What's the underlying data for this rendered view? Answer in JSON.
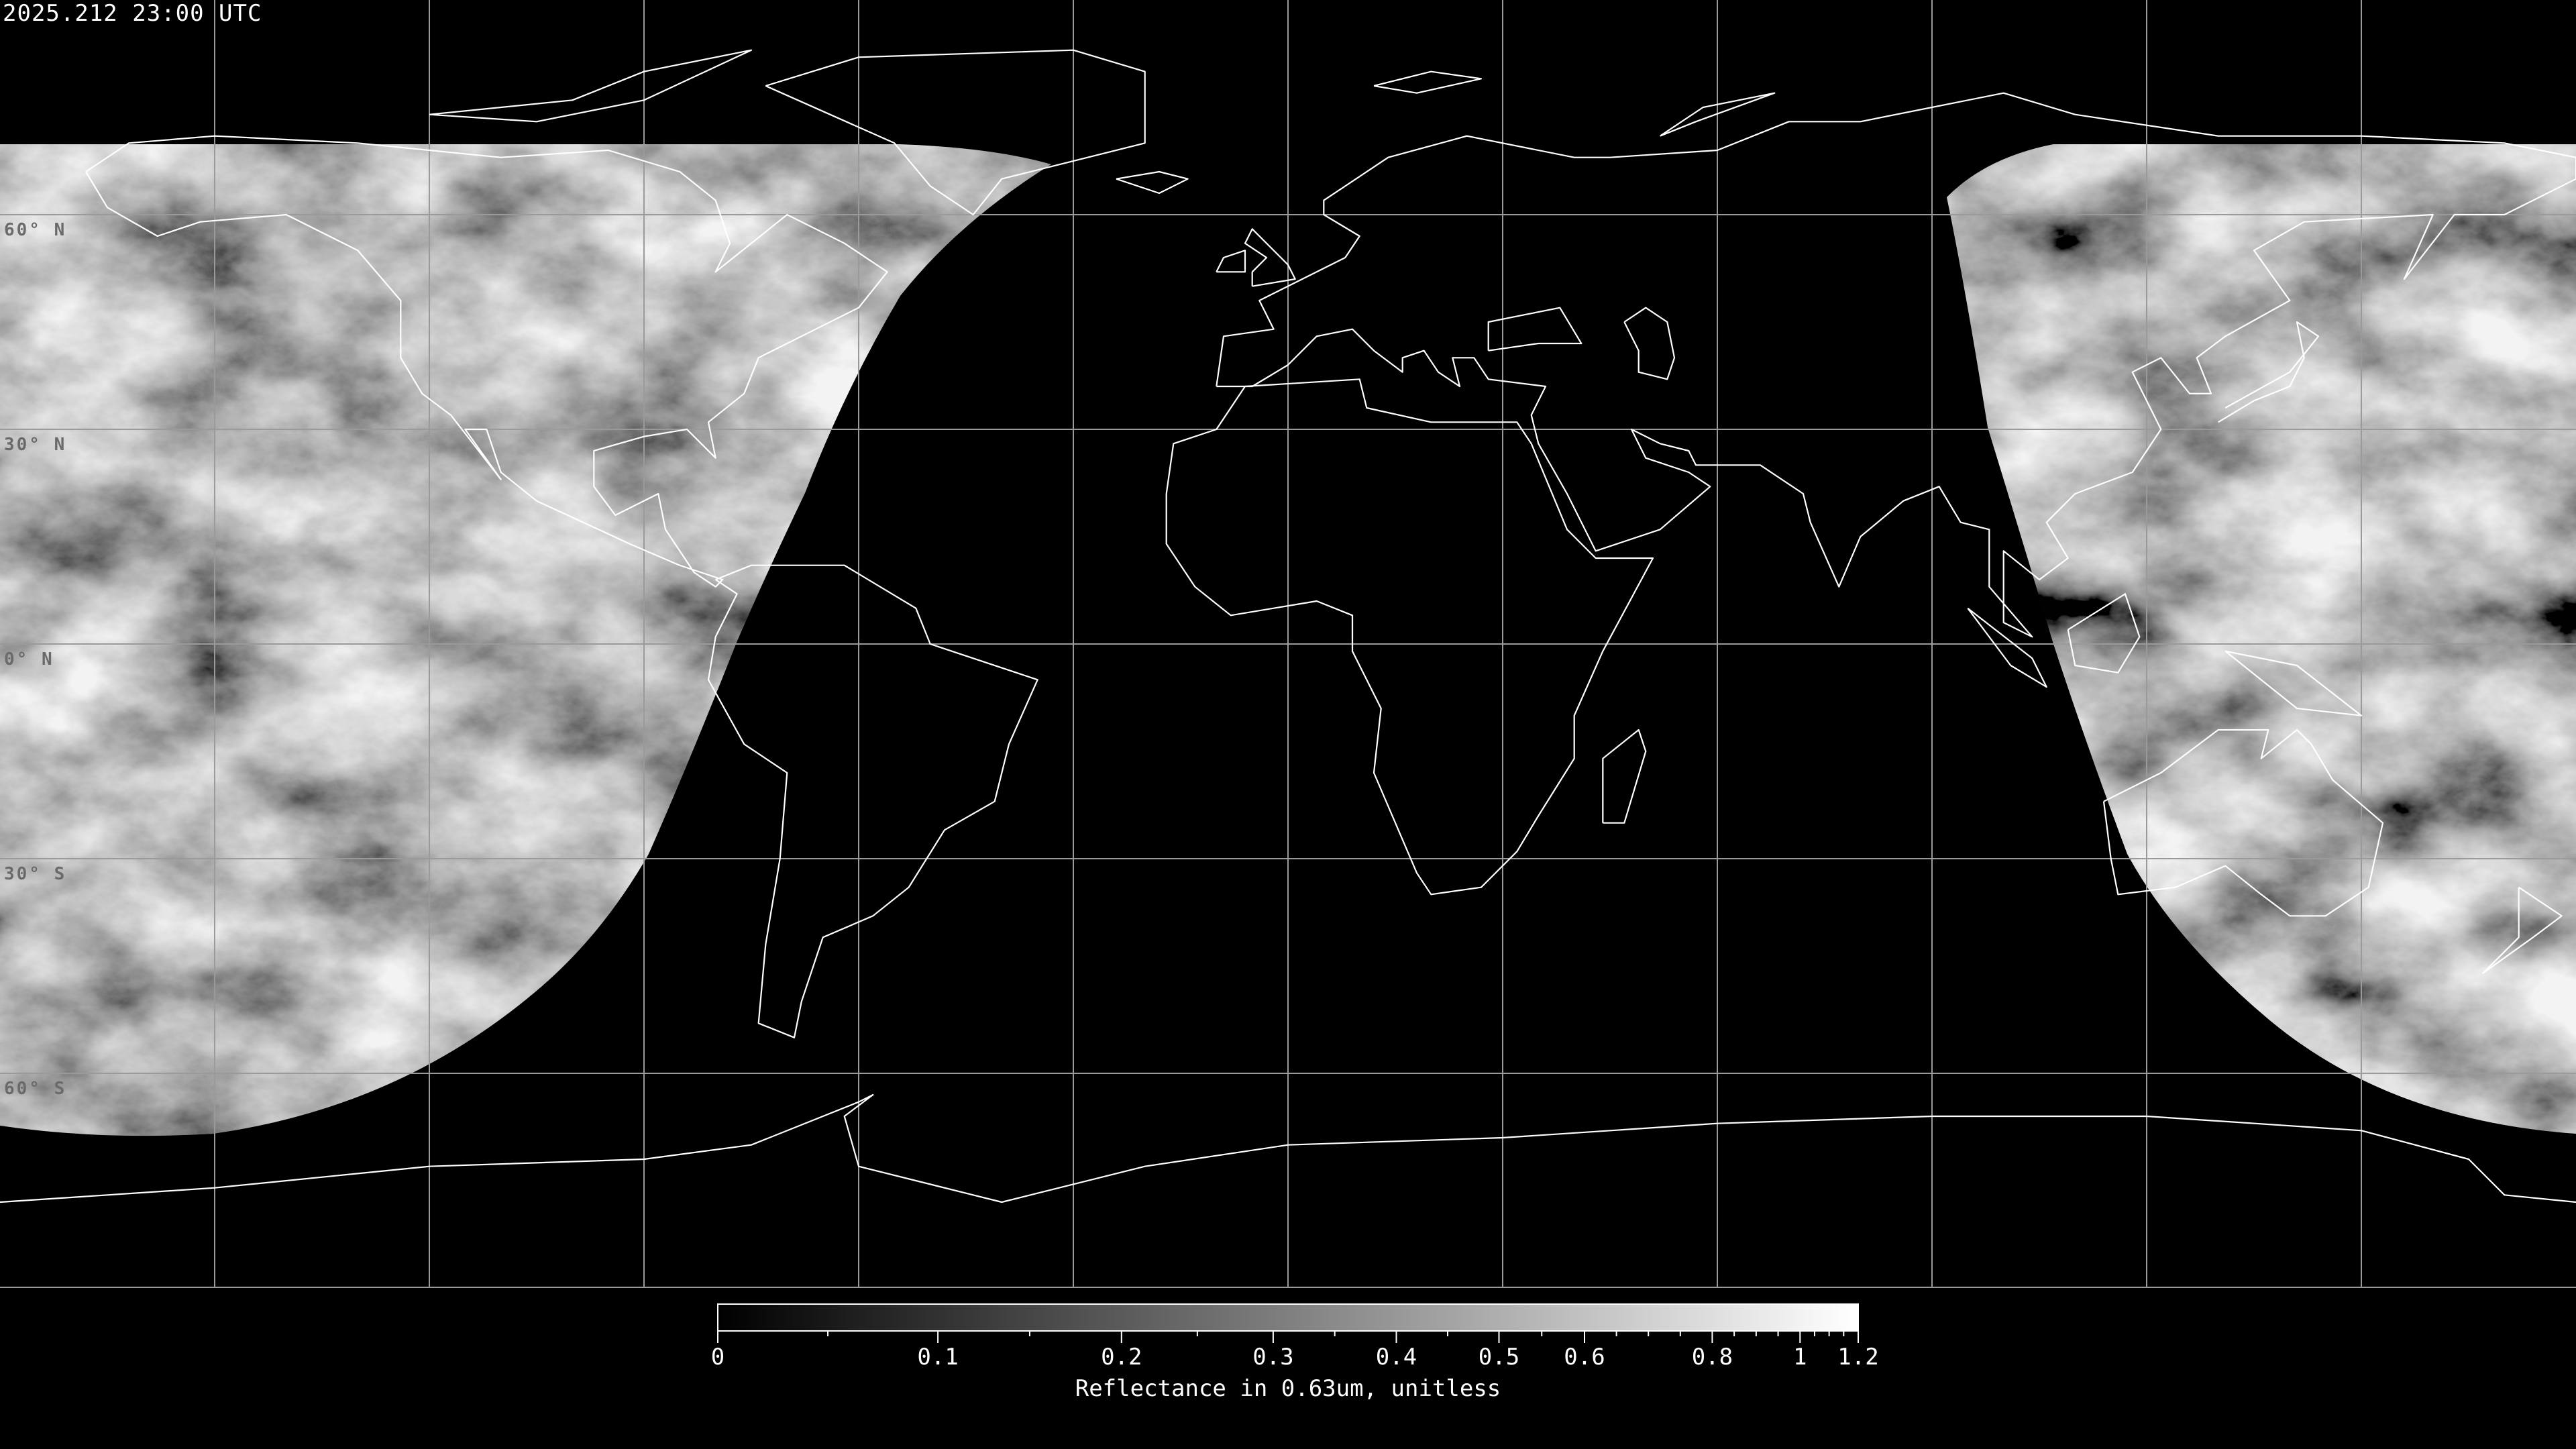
{
  "header": {
    "title": "2025.212 23:00 UTC"
  },
  "map": {
    "projection": "equirectangular",
    "lon_range": [
      -180,
      180
    ],
    "lat_range": [
      -90,
      90
    ],
    "graticule_step_deg": 30,
    "background_color": "#000000",
    "coastline_color": "#ffffff",
    "grid_color": "#9a9a9a",
    "imagery": "grayscale visible reflectance, daylit hemisphere only",
    "latitude_labels": [
      {
        "text": "60° N",
        "lat": 60
      },
      {
        "text": "30° N",
        "lat": 30
      },
      {
        "text": "0° N",
        "lat": 0
      },
      {
        "text": "30° S",
        "lat": -30
      },
      {
        "text": "60° S",
        "lat": -60
      }
    ]
  },
  "colorbar": {
    "label": "Reflectance in 0.63um, unitless",
    "colormap": "grayscale black-to-white",
    "range": [
      0,
      1.2
    ],
    "ticks": [
      "0",
      "0.1",
      "0.2",
      "0.3",
      "0.4",
      "0.5",
      "0.6",
      "0.8",
      "1",
      "1.2"
    ],
    "minor_ticks": [
      0.05,
      0.15,
      0.25,
      0.35,
      0.45,
      0.55,
      0.65,
      0.7,
      0.75,
      0.85,
      0.9,
      0.95,
      1.05,
      1.1,
      1.15
    ]
  }
}
